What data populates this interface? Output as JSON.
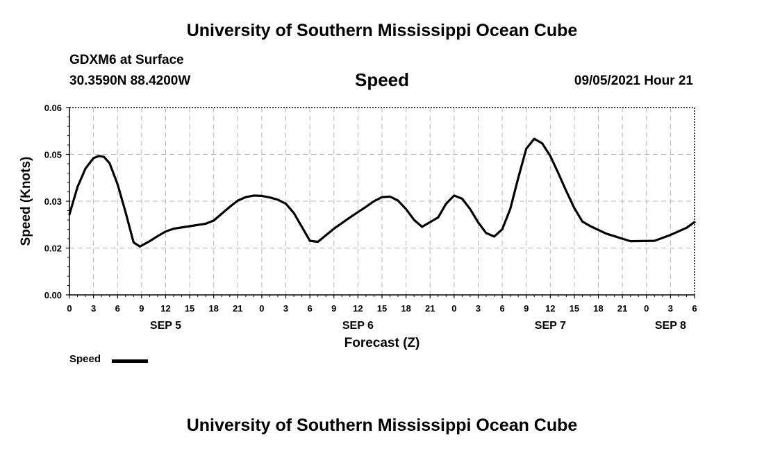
{
  "page": {
    "top_title": "University of Southern Mississippi Ocean Cube",
    "bottom_title": "University of Southern Mississippi Ocean Cube",
    "station": "GDXM6 at Surface",
    "coords": "30.3590N  88.4200W",
    "datetime": "09/05/2021 Hour 21"
  },
  "chart_data": {
    "type": "line",
    "title": "Speed",
    "xlabel": "Forecast (Z)",
    "ylabel": "Speed (Knots)",
    "ylim": [
      0.0,
      0.06
    ],
    "xlim": [
      0,
      78
    ],
    "x_unit": "hours from SEP 5 00Z",
    "y_ticks": [
      "0.00",
      "0.02",
      "0.03",
      "0.05",
      "0.06"
    ],
    "y_tick_values": [
      0.0,
      0.015,
      0.03,
      0.045,
      0.06
    ],
    "x_ticks": [
      {
        "x": 0,
        "label": "0"
      },
      {
        "x": 3,
        "label": "3"
      },
      {
        "x": 6,
        "label": "6"
      },
      {
        "x": 9,
        "label": "9"
      },
      {
        "x": 12,
        "label": "12"
      },
      {
        "x": 15,
        "label": "15"
      },
      {
        "x": 18,
        "label": "18"
      },
      {
        "x": 21,
        "label": "21"
      },
      {
        "x": 24,
        "label": "0"
      },
      {
        "x": 27,
        "label": "3"
      },
      {
        "x": 30,
        "label": "6"
      },
      {
        "x": 33,
        "label": "9"
      },
      {
        "x": 36,
        "label": "12"
      },
      {
        "x": 39,
        "label": "15"
      },
      {
        "x": 42,
        "label": "18"
      },
      {
        "x": 45,
        "label": "21"
      },
      {
        "x": 48,
        "label": "0"
      },
      {
        "x": 51,
        "label": "3"
      },
      {
        "x": 54,
        "label": "6"
      },
      {
        "x": 57,
        "label": "9"
      },
      {
        "x": 60,
        "label": "12"
      },
      {
        "x": 63,
        "label": "15"
      },
      {
        "x": 66,
        "label": "18"
      },
      {
        "x": 69,
        "label": "21"
      },
      {
        "x": 72,
        "label": "0"
      },
      {
        "x": 75,
        "label": "3"
      },
      {
        "x": 78,
        "label": "6"
      }
    ],
    "day_labels": [
      {
        "x": 12,
        "label": "SEP 5"
      },
      {
        "x": 36,
        "label": "SEP 6"
      },
      {
        "x": 60,
        "label": "SEP 7"
      },
      {
        "x": 75,
        "label": "SEP 8"
      }
    ],
    "grid": true,
    "legend": "bottom-left",
    "series": [
      {
        "name": "Speed",
        "color": "#000000",
        "x": [
          0,
          1,
          2,
          3,
          3.7,
          4.3,
          5,
          6,
          7,
          8,
          8.8,
          10,
          11,
          12,
          13,
          15,
          17,
          18,
          20,
          21,
          22,
          23,
          24,
          25,
          26,
          27,
          28,
          29,
          30,
          31,
          33,
          35,
          37,
          38,
          39,
          40,
          41,
          42,
          43,
          44,
          46,
          47,
          48,
          49,
          50,
          51,
          52,
          53,
          54,
          55,
          56,
          57,
          58,
          59,
          60,
          61,
          62,
          63,
          64,
          65,
          67,
          70,
          73,
          75,
          77,
          78
        ],
        "y": [
          0.0258,
          0.0345,
          0.0405,
          0.0438,
          0.0445,
          0.0442,
          0.0422,
          0.0355,
          0.0265,
          0.0168,
          0.0155,
          0.0172,
          0.0188,
          0.0203,
          0.0212,
          0.022,
          0.0228,
          0.0238,
          0.0282,
          0.0302,
          0.0313,
          0.0318,
          0.0317,
          0.0312,
          0.0305,
          0.0292,
          0.0262,
          0.0218,
          0.0173,
          0.017,
          0.0212,
          0.0248,
          0.0282,
          0.03,
          0.0313,
          0.0315,
          0.0302,
          0.0275,
          0.024,
          0.0218,
          0.0248,
          0.0292,
          0.0318,
          0.0308,
          0.0275,
          0.0232,
          0.0198,
          0.0187,
          0.021,
          0.0275,
          0.0375,
          0.0468,
          0.05,
          0.0485,
          0.0445,
          0.039,
          0.0332,
          0.0278,
          0.0235,
          0.022,
          0.0196,
          0.0172,
          0.0173,
          0.0192,
          0.0215,
          0.0233
        ]
      }
    ]
  }
}
